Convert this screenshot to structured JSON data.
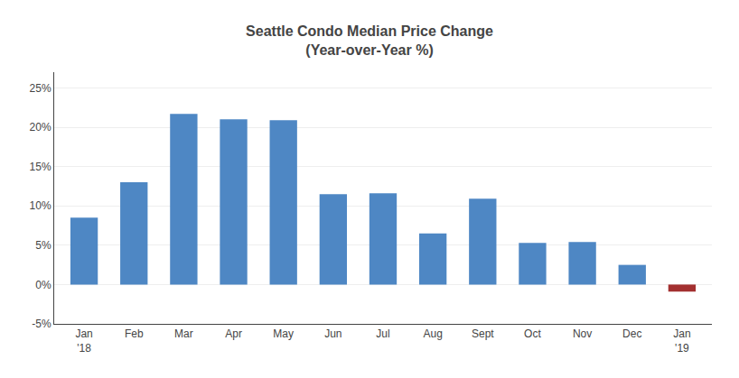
{
  "chart_data": {
    "type": "bar",
    "title": "Seattle Condo Median Price Change",
    "subtitle": "(Year-over-Year %)",
    "categories": [
      "Jan\n'18",
      "Feb",
      "Mar",
      "Apr",
      "May",
      "Jun",
      "Jul",
      "Aug",
      "Sept",
      "Oct",
      "Nov",
      "Dec",
      "Jan\n'19"
    ],
    "values": [
      8.5,
      13.0,
      21.7,
      21.0,
      20.9,
      11.5,
      11.6,
      6.5,
      10.9,
      5.3,
      5.4,
      2.5,
      -0.9
    ],
    "colors": [
      "#4e87c4",
      "#4e87c4",
      "#4e87c4",
      "#4e87c4",
      "#4e87c4",
      "#4e87c4",
      "#4e87c4",
      "#4e87c4",
      "#4e87c4",
      "#4e87c4",
      "#4e87c4",
      "#4e87c4",
      "#a33030"
    ],
    "ylim": [
      -5,
      27
    ],
    "yticks": [
      {
        "value": -5,
        "label": "-5%"
      },
      {
        "value": 0,
        "label": "0%"
      },
      {
        "value": 5,
        "label": "5%"
      },
      {
        "value": 10,
        "label": "10%"
      },
      {
        "value": 15,
        "label": "15%"
      },
      {
        "value": 20,
        "label": "20%"
      },
      {
        "value": 25,
        "label": "25%"
      }
    ],
    "grid": true
  }
}
